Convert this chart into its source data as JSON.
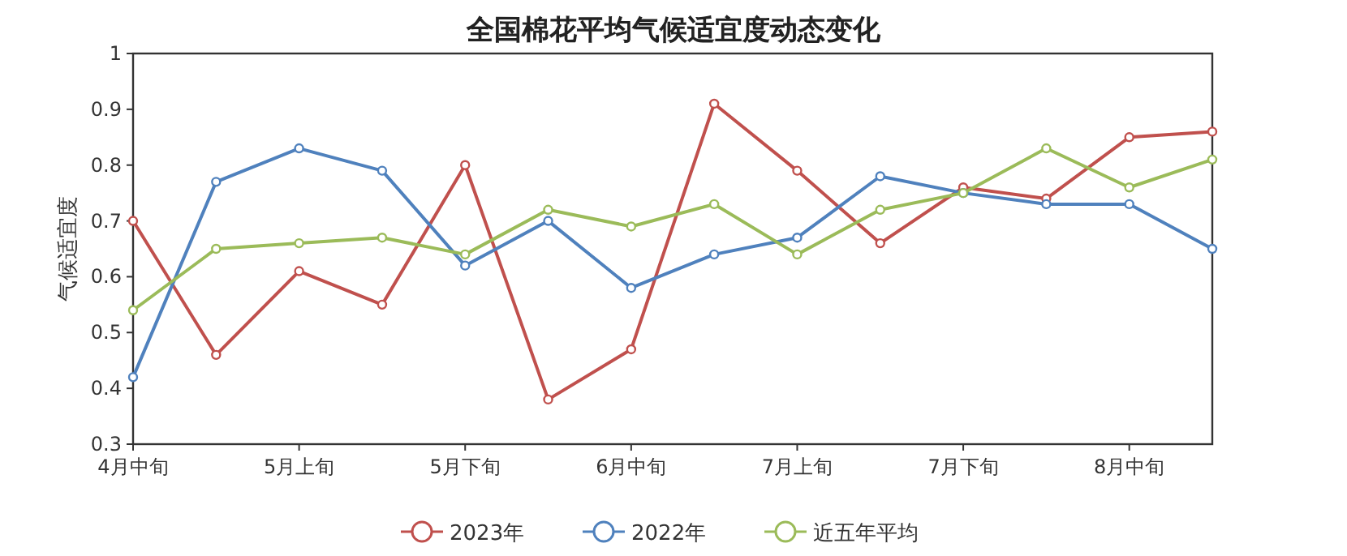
{
  "chart_data": {
    "type": "line",
    "title": "全国棉花平均气候适宜度动态变化",
    "ylabel": "气候适宜度",
    "categories": [
      "4月中旬",
      null,
      "5月上旬",
      null,
      "5月下旬",
      null,
      "6月中旬",
      null,
      "7月上旬",
      null,
      "7月下旬",
      null,
      "8月中旬",
      null
    ],
    "series": [
      {
        "name": "2023年",
        "color": "#c0504d",
        "values": [
          0.7,
          0.46,
          0.61,
          0.55,
          0.8,
          0.38,
          0.47,
          0.91,
          0.79,
          0.66,
          0.76,
          0.74,
          0.85,
          0.86
        ]
      },
      {
        "name": "2022年",
        "color": "#4f81bd",
        "values": [
          0.42,
          0.77,
          0.83,
          0.79,
          0.62,
          0.7,
          0.58,
          0.64,
          0.67,
          0.78,
          0.75,
          0.73,
          0.73,
          0.65
        ]
      },
      {
        "name": "近五年平均",
        "color": "#9bbb59",
        "values": [
          0.54,
          0.65,
          0.66,
          0.67,
          0.64,
          0.72,
          0.69,
          0.73,
          0.64,
          0.72,
          0.75,
          0.83,
          0.76,
          0.81
        ]
      }
    ],
    "ylim": [
      0.3,
      1
    ],
    "yticks": [
      0.3,
      0.4,
      0.5,
      0.6,
      0.7,
      0.8,
      0.9,
      1
    ],
    "legend": "bottom",
    "marker": "circle",
    "line_style": "solid"
  }
}
